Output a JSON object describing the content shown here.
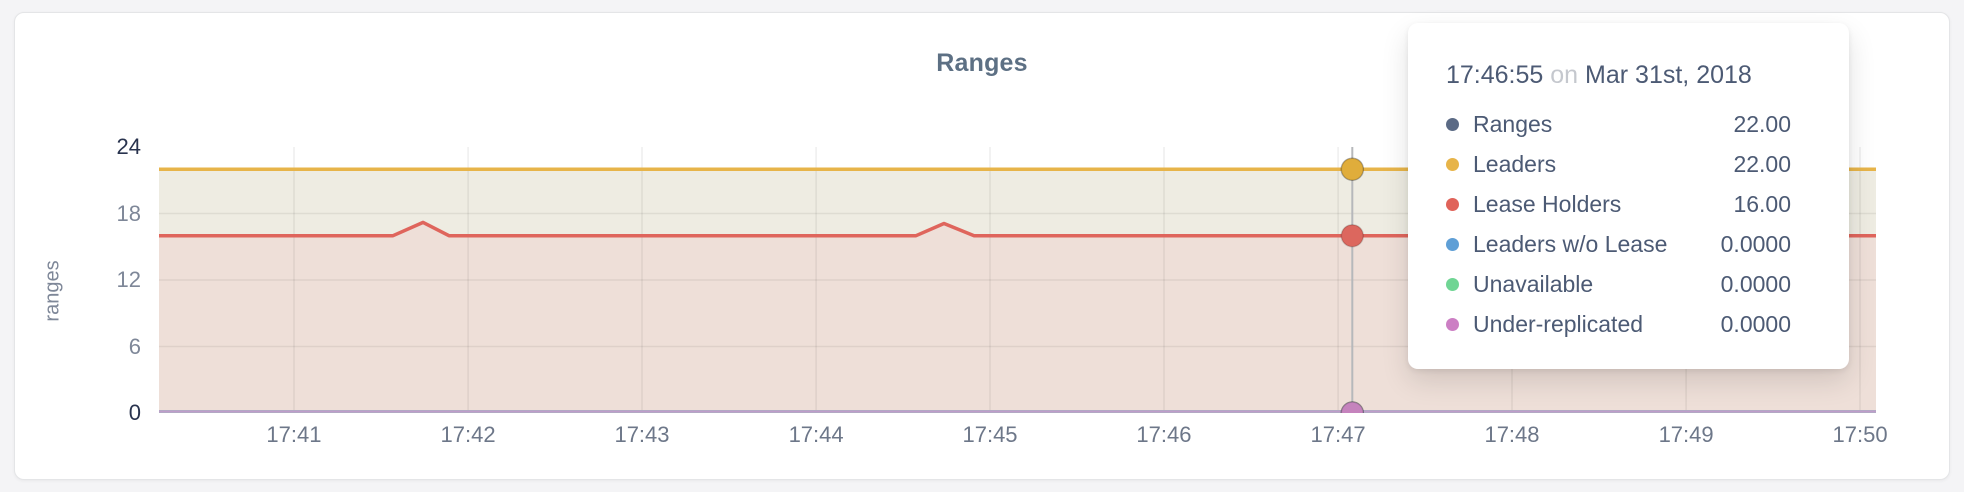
{
  "card": {
    "title": "Ranges"
  },
  "axes": {
    "y_label": "ranges",
    "y_ticks": [
      {
        "value": 24,
        "emph": true
      },
      {
        "value": 18,
        "emph": false
      },
      {
        "value": 12,
        "emph": false
      },
      {
        "value": 6,
        "emph": false
      },
      {
        "value": 0,
        "emph": true
      }
    ],
    "y_gridline_values": [
      6,
      12,
      18
    ],
    "x_ticks": [
      {
        "label": "17:41",
        "f": 0.0786
      },
      {
        "label": "17:42",
        "f": 0.18
      },
      {
        "label": "17:43",
        "f": 0.2813
      },
      {
        "label": "17:44",
        "f": 0.3827
      },
      {
        "label": "17:45",
        "f": 0.484
      },
      {
        "label": "17:46",
        "f": 0.5853
      },
      {
        "label": "17:47",
        "f": 0.6867
      },
      {
        "label": "17:48",
        "f": 0.788
      },
      {
        "label": "17:49",
        "f": 0.8894
      },
      {
        "label": "17:50",
        "f": 0.9907
      }
    ]
  },
  "chart_data": {
    "type": "area",
    "title": "Ranges",
    "xlabel": "",
    "ylabel": "ranges",
    "ylim": [
      0,
      24
    ],
    "grid": true,
    "x_ticks": [
      "17:41",
      "17:42",
      "17:43",
      "17:44",
      "17:45",
      "17:46",
      "17:47",
      "17:48",
      "17:49",
      "17:50"
    ],
    "hover": {
      "time": "17:46:55",
      "date": "Mar 31st, 2018",
      "x_fraction": 0.695
    },
    "series": [
      {
        "name": "Ranges",
        "color": "#5b6a85",
        "points": [
          {
            "x": 0,
            "y": 22
          },
          {
            "x": 1,
            "y": 22
          }
        ]
      },
      {
        "name": "Leaders",
        "color": "#e7b449",
        "fill": "#eeece2",
        "dot_color": "#e0ad3b",
        "points": [
          {
            "x": 0,
            "y": 22
          },
          {
            "x": 1,
            "y": 22
          }
        ]
      },
      {
        "name": "Lease Holders",
        "color": "#df655c",
        "fill": "#eedfd8",
        "dot_color": "#dc675e",
        "points": [
          {
            "x": 0,
            "y": 16
          },
          {
            "x": 0.1363,
            "y": 16
          },
          {
            "x": 0.1538,
            "y": 17.2
          },
          {
            "x": 0.1689,
            "y": 16
          },
          {
            "x": 0.4409,
            "y": 16
          },
          {
            "x": 0.4572,
            "y": 17.1
          },
          {
            "x": 0.4747,
            "y": 16
          },
          {
            "x": 1,
            "y": 16
          }
        ]
      },
      {
        "name": "Leaders w/o Lease",
        "color": "#5f9fd6",
        "points": [
          {
            "x": 0,
            "y": 0
          },
          {
            "x": 1,
            "y": 0
          }
        ]
      },
      {
        "name": "Unavailable",
        "color": "#70d594",
        "points": [
          {
            "x": 0,
            "y": 0
          },
          {
            "x": 1,
            "y": 0
          }
        ]
      },
      {
        "name": "Under-replicated",
        "color": "#bf9dca",
        "dot_color": "#c583bd",
        "points": [
          {
            "x": 0,
            "y": 0
          },
          {
            "x": 1,
            "y": 0
          }
        ]
      }
    ]
  },
  "tooltip": {
    "time": "17:46:55",
    "preposition": "on",
    "date": "Mar 31st, 2018",
    "rows": [
      {
        "label": "Ranges",
        "value": "22.00",
        "color": "#5b6a85"
      },
      {
        "label": "Leaders",
        "value": "22.00",
        "color": "#e7b449"
      },
      {
        "label": "Lease Holders",
        "value": "16.00",
        "color": "#e0635a"
      },
      {
        "label": "Leaders w/o Lease",
        "value": "0.0000",
        "color": "#5f9fd6"
      },
      {
        "label": "Unavailable",
        "value": "0.0000",
        "color": "#70d594"
      },
      {
        "label": "Under-replicated",
        "value": "0.0000",
        "color": "#cc7fc4"
      }
    ]
  },
  "colors": {
    "crosshair": "#b6b8bb",
    "gridline_opacity": 0.065,
    "title": "#5d7084",
    "tick_emphasis": "#29334e",
    "tick_dim": "#7e8798"
  }
}
